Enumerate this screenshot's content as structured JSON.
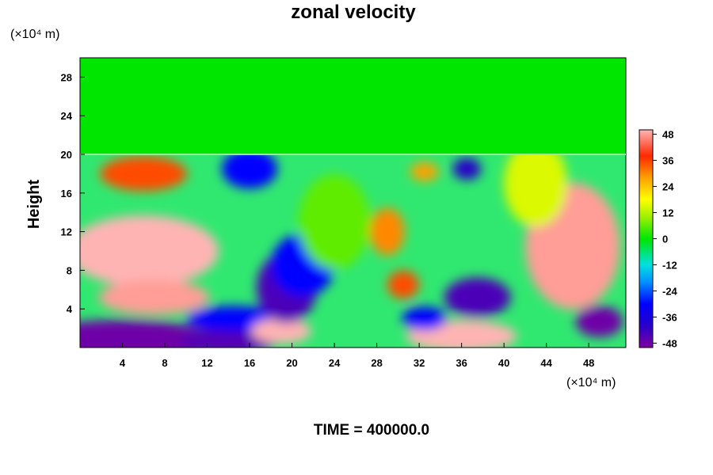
{
  "chart_data": {
    "type": "heatmap",
    "title": "zonal velocity",
    "ylabel": "Height",
    "xlabel": "",
    "x_unit": "(×10⁴ m)",
    "y_unit": "(×10⁴ m)",
    "xlim": [
      0,
      51.5
    ],
    "ylim": [
      0,
      30
    ],
    "x_ticks": [
      "4",
      "8",
      "12",
      "16",
      "20",
      "24",
      "28",
      "32",
      "36",
      "40",
      "44",
      "48"
    ],
    "y_ticks": [
      "4",
      "8",
      "12",
      "16",
      "20",
      "24",
      "28"
    ],
    "colorbar": {
      "range": [
        -50,
        50
      ],
      "ticks": [
        "48",
        "36",
        "24",
        "12",
        "0",
        "-12",
        "-24",
        "-36",
        "-48"
      ]
    },
    "field_features": [
      {
        "x": 6,
        "y": 10,
        "value": 50
      },
      {
        "x": 6,
        "y": 18,
        "value": 35
      },
      {
        "x": 7,
        "y": 5.2,
        "value": 48
      },
      {
        "x": 4,
        "y": 0.6,
        "value": -48
      },
      {
        "x": 14,
        "y": 0.6,
        "value": -45
      },
      {
        "x": 14.5,
        "y": 3,
        "value": -30
      },
      {
        "x": 19,
        "y": 1.7,
        "value": 50
      },
      {
        "x": 19.5,
        "y": 6.2,
        "value": -44
      },
      {
        "x": 21,
        "y": 8.5,
        "value": -30
      },
      {
        "x": 16,
        "y": 18.5,
        "value": -30
      },
      {
        "x": 29,
        "y": 12,
        "value": 30
      },
      {
        "x": 30.5,
        "y": 6.5,
        "value": 35
      },
      {
        "x": 36,
        "y": 1.2,
        "value": 50
      },
      {
        "x": 37.5,
        "y": 5.2,
        "value": -44
      },
      {
        "x": 32.5,
        "y": 3,
        "value": -30
      },
      {
        "x": 46.5,
        "y": 10.5,
        "value": 48
      },
      {
        "x": 49,
        "y": 2.7,
        "value": -48
      },
      {
        "x": 36.5,
        "y": 18.5,
        "value": -40
      },
      {
        "x": 32.5,
        "y": 18.2,
        "value": 28
      },
      {
        "x": 24,
        "y": 13,
        "value": 6
      },
      {
        "x": 43,
        "y": 17,
        "value": 15
      }
    ]
  },
  "footer": {
    "time_label": "TIME = 400000.0"
  },
  "colors": {
    "background": "#ffffff",
    "upper_field": "#00e600",
    "scale": [
      "#8000a0",
      "#0000c8",
      "#0050ff",
      "#00c8ff",
      "#00e600",
      "#b4f000",
      "#ffff00",
      "#ffa000",
      "#ff2800",
      "#ffb4b4"
    ]
  }
}
